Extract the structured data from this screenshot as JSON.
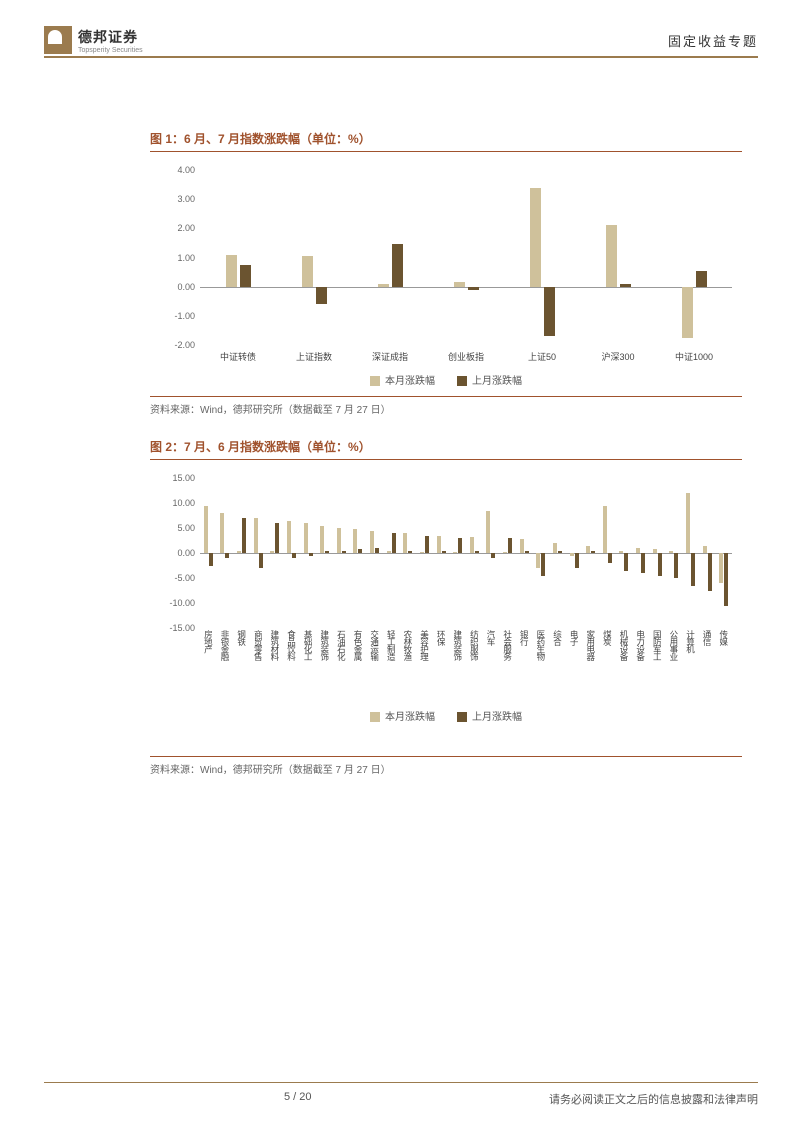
{
  "header": {
    "brand": "德邦证券",
    "brand_sub": "Topsperity Securities",
    "section": "固定收益专题"
  },
  "chart1": {
    "title": "图 1：6 月、7 月指数涨跌幅（单位：%）",
    "type": "bar",
    "ylim": [
      -2.0,
      4.0
    ],
    "yticks": [
      -2.0,
      -1.0,
      0.0,
      1.0,
      2.0,
      3.0,
      4.0
    ],
    "categories": [
      "中证转债",
      "上证指数",
      "深证成指",
      "创业板指",
      "上证50",
      "沪深300",
      "中证1000"
    ],
    "series": [
      {
        "name": "本月涨跌幅",
        "color": "#cfc19b",
        "values": [
          1.1,
          1.05,
          0.1,
          0.15,
          3.4,
          2.1,
          -1.75
        ]
      },
      {
        "name": "上月涨跌幅",
        "color": "#6b5430",
        "values": [
          0.75,
          -0.6,
          1.45,
          -0.1,
          -1.7,
          0.1,
          0.55
        ]
      }
    ],
    "source": "资料来源：Wind，德邦研究所（数据截至 7 月 27 日）",
    "baseline_color": "#999",
    "label_fontsize": 9
  },
  "chart2": {
    "title": "图 2：7 月、6 月指数涨跌幅（单位：%）",
    "type": "bar",
    "ylim": [
      -15.0,
      15.0
    ],
    "yticks": [
      -15.0,
      -10.0,
      -5.0,
      0.0,
      5.0,
      10.0,
      15.0
    ],
    "categories": [
      "房地产",
      "非银金融",
      "钢铁",
      "商贸零售",
      "建筑材料",
      "食品饮料",
      "基础化工",
      "建筑装饰",
      "石油石化",
      "有色金属",
      "交通运输",
      "轻工制造",
      "农林牧渔",
      "美容护理",
      "环保",
      "建筑装饰",
      "纺织服饰",
      "汽车",
      "社会服务",
      "银行",
      "医药生物",
      "综合",
      "电子",
      "家用电器",
      "煤炭",
      "机械设备",
      "电力设备",
      "国防军工",
      "公用事业",
      "计算机",
      "通信",
      "传媒"
    ],
    "series": [
      {
        "name": "本月涨跌幅",
        "color": "#cfc19b",
        "values": [
          9.5,
          8.0,
          0.5,
          7.0,
          0.5,
          6.5,
          6.0,
          5.5,
          5.0,
          4.8,
          4.5,
          0.5,
          4.0,
          0.2,
          3.5,
          0.3,
          3.2,
          8.5,
          0.2,
          2.8,
          -3.0,
          2.0,
          -0.5,
          1.5,
          9.5,
          0.5,
          1.0,
          0.8,
          0.5,
          12.0,
          1.5,
          -6.0
        ]
      },
      {
        "name": "上月涨跌幅",
        "color": "#6b5430",
        "values": [
          -2.5,
          -1.0,
          7.0,
          -3.0,
          6.0,
          -1.0,
          -0.5,
          0.5,
          0.5,
          0.8,
          1.0,
          4.0,
          0.5,
          3.5,
          0.5,
          3.0,
          0.5,
          -1.0,
          3.0,
          0.5,
          -4.5,
          0.5,
          -3.0,
          0.5,
          -2.0,
          -3.5,
          -4.0,
          -4.5,
          -5.0,
          -6.5,
          -7.5,
          -10.5
        ]
      }
    ],
    "source": "资料来源：Wind，德邦研究所（数据截至 7 月 27 日）",
    "baseline_color": "#999",
    "label_fontsize": 9
  },
  "footer": {
    "page": "5 / 20",
    "disclaimer": "请务必阅读正文之后的信息披露和法律声明"
  },
  "colors": {
    "accent": "#9b7b4e",
    "title": "#a0522d"
  }
}
